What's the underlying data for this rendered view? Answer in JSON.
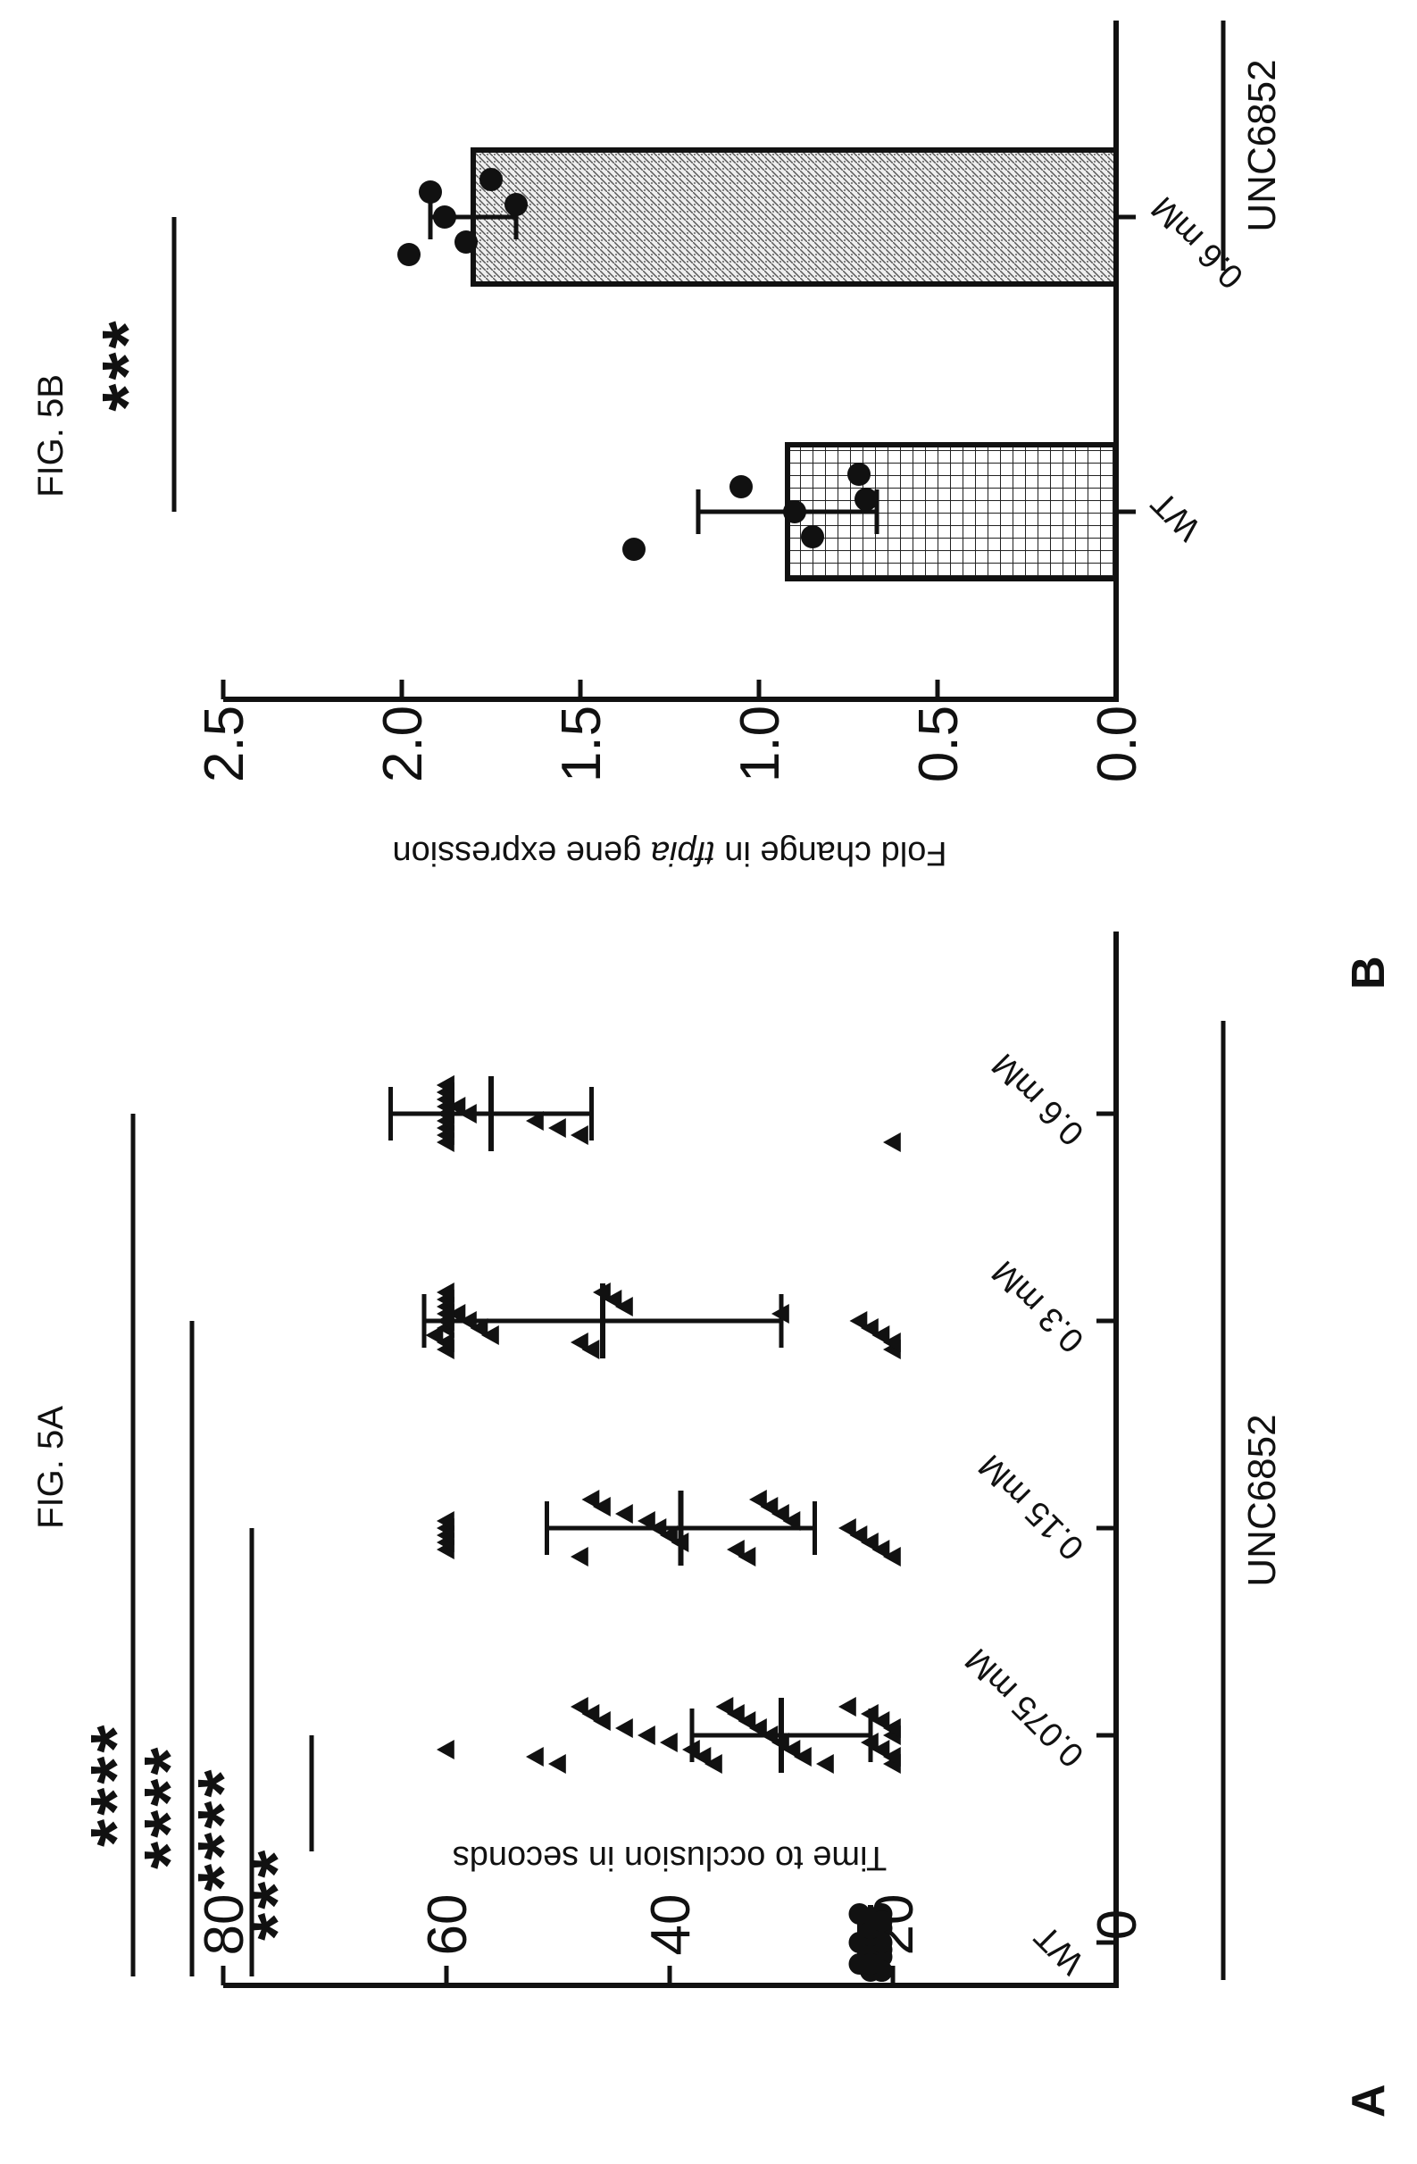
{
  "figure_labels": {
    "fig_a_title": "FIG. 5A",
    "fig_b_title": "FIG. 5B",
    "panel_a_letter": "A",
    "panel_b_letter": "B"
  },
  "chart_data": [
    {
      "type": "scatter",
      "panel": "A",
      "title": "FIG. 5A",
      "ylabel": "Time to occlusion in seconds",
      "xlabel": "",
      "group_label": "UNC6852",
      "ylim": [
        0,
        80
      ],
      "yticks": [
        "0",
        "20",
        "40",
        "60",
        "80"
      ],
      "categories": [
        "WT",
        "0.075 mM",
        "0.15 mM",
        "0.3 mM",
        "0.6 mM"
      ],
      "markers": [
        "circle",
        "triangle",
        "triangle",
        "triangle",
        "triangle"
      ],
      "points": [
        [
          21,
          22,
          22,
          21,
          23,
          22,
          21,
          22,
          21,
          22,
          23,
          21,
          22,
          21,
          22,
          22,
          21,
          23,
          21,
          22
        ],
        [
          20,
          20,
          21,
          22,
          20,
          20,
          21,
          22,
          24,
          26,
          28,
          29,
          30,
          31,
          32,
          33,
          34,
          35,
          36,
          37,
          38,
          40,
          42,
          44,
          46,
          47,
          48,
          50,
          52,
          60
        ],
        [
          20,
          21,
          22,
          23,
          24,
          29,
          30,
          31,
          32,
          33,
          34,
          39,
          40,
          41,
          42,
          44,
          46,
          47,
          48,
          60,
          60,
          60,
          60,
          60
        ],
        [
          20,
          20,
          21,
          22,
          23,
          30,
          44,
          45,
          46,
          47,
          48,
          56,
          57,
          58,
          59,
          60,
          60,
          60,
          60,
          60,
          61,
          60,
          60,
          60
        ],
        [
          20,
          48,
          50,
          52,
          58,
          59,
          60,
          60,
          60,
          60,
          60,
          60,
          60,
          60,
          60,
          60,
          60,
          60
        ]
      ],
      "means": [
        22,
        30,
        39,
        46,
        56
      ],
      "sd": [
        1,
        8,
        12,
        16,
        9
      ],
      "significance": [
        {
          "stars": "***",
          "from": "WT",
          "to": "0.075 mM"
        },
        {
          "stars": "****",
          "from": "WT",
          "to": "0.15 mM"
        },
        {
          "stars": "****",
          "from": "WT",
          "to": "0.3 mM"
        },
        {
          "stars": "****",
          "from": "WT",
          "to": "0.6 mM"
        }
      ]
    },
    {
      "type": "bar",
      "panel": "B",
      "title": "FIG. 5B",
      "ylabel_pre": "Fold change in ",
      "ylabel_gene": "tfpia",
      "ylabel_post": " gene expression",
      "xlabel": "",
      "group_label": "UNC6852",
      "ylim": [
        0,
        2.5
      ],
      "yticks": [
        "0.0",
        "0.5",
        "1.0",
        "1.5",
        "2.0",
        "2.5"
      ],
      "categories": [
        "WT",
        "0.6 mM"
      ],
      "values": [
        0.92,
        1.8
      ],
      "errors": [
        0.25,
        0.12
      ],
      "fills": [
        "grid",
        "stipple"
      ],
      "points": [
        [
          1.35,
          1.05,
          0.9,
          0.85,
          0.72,
          0.7
        ],
        [
          1.98,
          1.92,
          1.88,
          1.82,
          1.75,
          1.68
        ]
      ],
      "significance": [
        {
          "stars": "***",
          "from": "WT",
          "to": "0.6 mM"
        }
      ]
    }
  ]
}
